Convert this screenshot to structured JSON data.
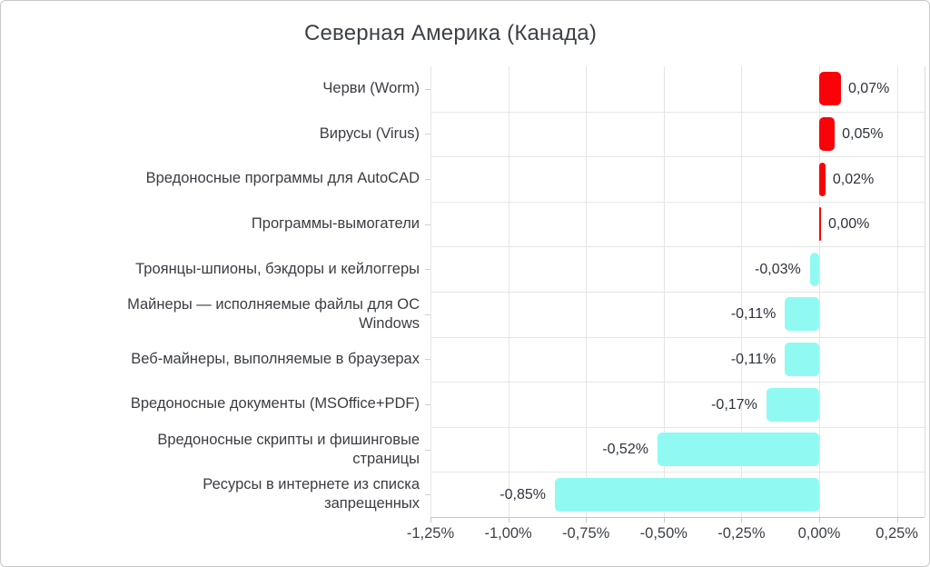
{
  "chart_data": {
    "type": "bar",
    "orientation": "horizontal",
    "title": "Северная Америка (Канада)",
    "categories": [
      "Черви (Worm)",
      "Вирусы (Virus)",
      "Вредоносные программы для AutoCAD",
      "Программы-вымогатели",
      "Троянцы-шпионы, бэкдоры и кейлоггеры",
      "Майнеры — исполняемые файлы для ОС\nWindows",
      "Веб-майнеры, выполняемые в браузерах",
      "Вредоносные документы (MSOffice+PDF)",
      "Вредоносные скрипты и фишинговые\nстраницы",
      "Ресурсы в интернете из списка\nзапрещенных"
    ],
    "values": [
      0.07,
      0.05,
      0.02,
      0.0,
      -0.03,
      -0.11,
      -0.11,
      -0.17,
      -0.52,
      -0.85
    ],
    "value_labels": [
      "0,07%",
      "0,05%",
      "0,02%",
      "0,00%",
      "-0,03%",
      "-0,11%",
      "-0,11%",
      "-0,17%",
      "-0,52%",
      "-0,85%"
    ],
    "x_ticks": {
      "values": [
        -1.25,
        -1.0,
        -0.75,
        -0.5,
        -0.25,
        0.0,
        0.25
      ],
      "labels": [
        "-1,25%",
        "-1,00%",
        "-0,75%",
        "-0,50%",
        "-0,25%",
        "0,00%",
        "0,25%"
      ]
    },
    "xlim": [
      -1.25,
      0.25
    ],
    "grid": true,
    "legend": "none",
    "colors": {
      "positive_bar": "#f90309",
      "negative_bar": "#90faf2",
      "gridline": "#e6e6e6",
      "axis_line": "#c6c6c6",
      "text": "#3a3d42",
      "value_text": "#2d323c",
      "title_text": "#3c4147"
    }
  }
}
